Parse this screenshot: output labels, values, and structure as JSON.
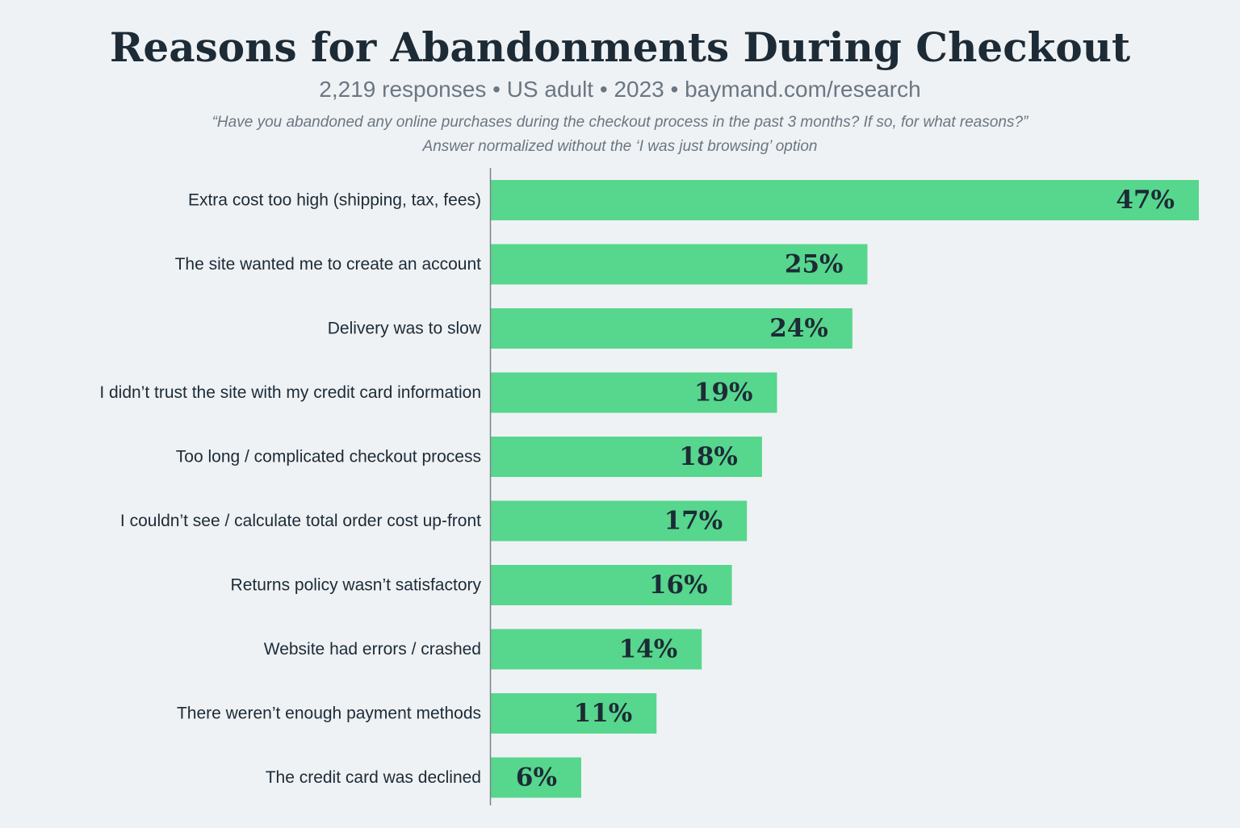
{
  "header": {
    "title": "Reasons for Abandonments During Checkout",
    "subtitle": "2,219 responses • US adult • 2023 • baymand.com/research",
    "question": "“Have you abandoned any online purchases during the checkout process in the past 3 months? If so, for what reasons?”",
    "note": "Answer normalized without the ‘I was just browsing’ option"
  },
  "colors": {
    "background": "#eef2f5",
    "bar": "#57d68d",
    "text": "#1d2b36",
    "muted_text": "#6b7682",
    "axis": "#7a8288"
  },
  "chart_data": {
    "type": "bar",
    "orientation": "horizontal",
    "categories": [
      "Extra cost too high (shipping, tax, fees)",
      "The site wanted me to create an account",
      "Delivery was to slow",
      "I didn’t trust the site with my credit card information",
      "Too long / complicated checkout process",
      "I couldn’t see / calculate total order cost up-front",
      "Returns policy wasn’t satisfactory",
      "Website had errors / crashed",
      "There weren’t enough payment methods",
      "The credit card was declined"
    ],
    "values": [
      47,
      25,
      24,
      19,
      18,
      17,
      16,
      14,
      11,
      6
    ],
    "value_labels": [
      "47%",
      "25%",
      "24%",
      "19%",
      "18%",
      "17%",
      "16%",
      "14%",
      "11%",
      "6%"
    ],
    "unit": "%",
    "xlim": [
      0,
      47
    ],
    "grid": false,
    "legend": "none"
  }
}
